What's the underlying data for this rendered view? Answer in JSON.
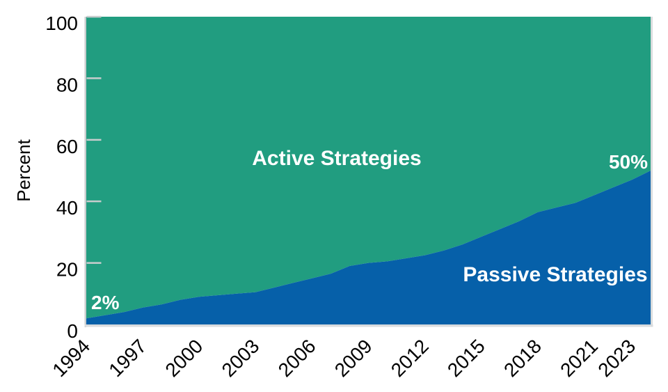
{
  "chart_data": {
    "type": "area",
    "stacked_percent": true,
    "title": "",
    "xlabel": "",
    "ylabel": "Percent",
    "ylim": [
      0,
      100
    ],
    "yticks": [
      0,
      20,
      40,
      60,
      80,
      100
    ],
    "xticks": [
      1994,
      1997,
      2000,
      2003,
      2006,
      2009,
      2012,
      2015,
      2018,
      2021,
      2023
    ],
    "x": [
      1994,
      1995,
      1996,
      1997,
      1998,
      1999,
      2000,
      2001,
      2002,
      2003,
      2004,
      2005,
      2006,
      2007,
      2008,
      2009,
      2010,
      2011,
      2012,
      2013,
      2014,
      2015,
      2016,
      2017,
      2018,
      2019,
      2020,
      2021,
      2022,
      2023,
      2024
    ],
    "series": [
      {
        "name": "Passive Strategies",
        "color": "#0660a9",
        "values": [
          2,
          3,
          4,
          5.5,
          6.5,
          8,
          9,
          9.5,
          10,
          10.5,
          12,
          13.5,
          15,
          16.5,
          19,
          20,
          20.5,
          21.5,
          22.5,
          24,
          26,
          28.5,
          31,
          33.5,
          36.5,
          38,
          39.5,
          42,
          44.5,
          47,
          50
        ]
      },
      {
        "name": "Active Strategies",
        "color": "#219d80",
        "values": [
          98,
          97,
          96,
          94.5,
          93.5,
          92,
          91,
          90.5,
          90,
          89.5,
          88,
          86.5,
          85,
          83.5,
          81,
          80,
          79.5,
          78.5,
          77.5,
          76,
          74,
          71.5,
          69,
          66.5,
          63.5,
          62,
          60.5,
          58,
          55.5,
          53,
          50
        ]
      }
    ],
    "annotations": [
      {
        "id": "passive-start-value",
        "text": "2%",
        "color": "#ffffff"
      },
      {
        "id": "passive-end-value",
        "text": "50%",
        "color": "#ffffff"
      },
      {
        "id": "active-series-label",
        "text": "Active Strategies",
        "color": "#ffffff"
      },
      {
        "id": "passive-series-label",
        "text": "Passive Strategies",
        "color": "#ffffff"
      }
    ],
    "grid": false,
    "legend": "none",
    "axis_color": "#c9cdce",
    "frame_shadow_color": "#d9dcde",
    "tick_label_color": "#000000"
  }
}
